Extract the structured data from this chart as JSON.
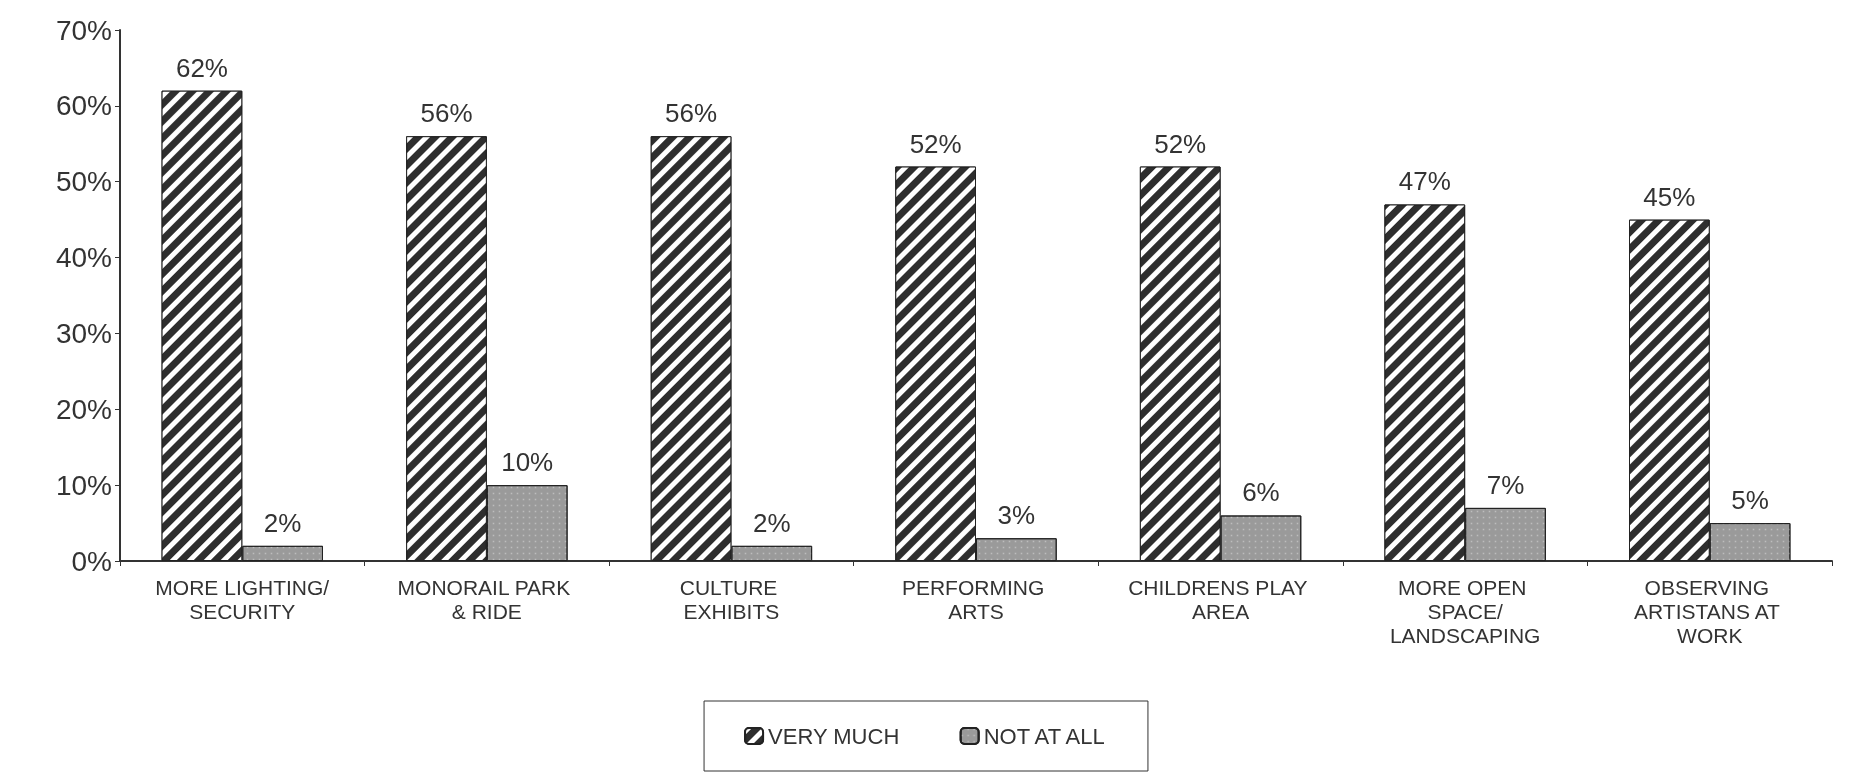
{
  "chart_data": {
    "type": "bar",
    "categories": [
      "MORE LIGHTING/SECURITY",
      "MONORAIL PARK & RIDE",
      "CULTURE EXHIBITS",
      "PERFORMING ARTS",
      "CHILDRENS PLAY AREA",
      "MORE OPEN SPACE/LANDSCAPING",
      "OBSERVING ARTISTANS AT WORK"
    ],
    "series": [
      {
        "name": "VERY MUCH",
        "color": "#2e2e2e",
        "values": [
          62,
          56,
          56,
          52,
          52,
          47,
          45
        ],
        "value_labels": [
          "62%",
          "56%",
          "56%",
          "52%",
          "52%",
          "47%",
          "45%"
        ]
      },
      {
        "name": "NOT AT ALL",
        "color": "#9a9a9a",
        "values": [
          2,
          10,
          2,
          3,
          6,
          7,
          5
        ],
        "value_labels": [
          "2%",
          "10%",
          "2%",
          "3%",
          "6%",
          "7%",
          "5%"
        ]
      }
    ],
    "ylim": [
      0,
      70
    ],
    "yticks": [
      {
        "value": 0,
        "label": "0%"
      },
      {
        "value": 10,
        "label": "10%"
      },
      {
        "value": 20,
        "label": "20%"
      },
      {
        "value": 30,
        "label": "30%"
      },
      {
        "value": 40,
        "label": "40%"
      },
      {
        "value": 50,
        "label": "50%"
      },
      {
        "value": 60,
        "label": "60%"
      },
      {
        "value": 70,
        "label": "70%"
      }
    ],
    "grid": false,
    "legend": "bottom"
  }
}
